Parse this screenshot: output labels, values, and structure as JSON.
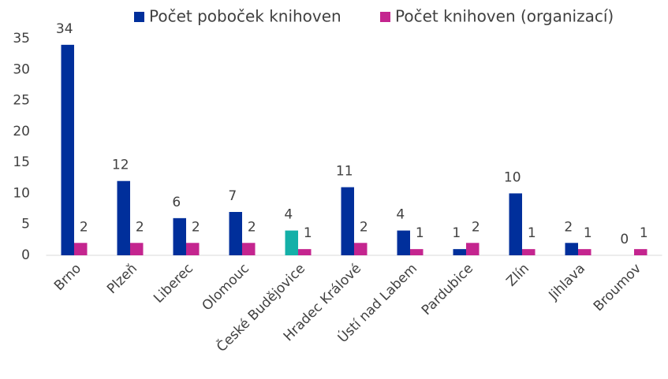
{
  "chart_data": {
    "type": "bar",
    "categories": [
      "Brno",
      "Plzeň",
      "Liberec",
      "Olomouc",
      "České Budějovice",
      "Hradec Králové",
      "Ústí nad Labem",
      "Pardubice",
      "Zlín",
      "Jihlava",
      "Broumov"
    ],
    "series": [
      {
        "name": "Počet poboček knihoven",
        "color": "#002f9b",
        "colors": [
          "#002f9b",
          "#002f9b",
          "#002f9b",
          "#002f9b",
          "#14b0a8",
          "#002f9b",
          "#002f9b",
          "#002f9b",
          "#002f9b",
          "#002f9b",
          "#002f9b"
        ],
        "values": [
          34,
          12,
          6,
          7,
          4,
          11,
          4,
          1,
          10,
          2,
          0
        ]
      },
      {
        "name": "Počet knihoven (organizací)",
        "color": "#c4258f",
        "values": [
          2,
          2,
          2,
          2,
          1,
          2,
          1,
          2,
          1,
          1,
          1
        ]
      }
    ],
    "ylim": [
      0,
      35
    ],
    "yticks": [
      0,
      5,
      10,
      15,
      20,
      25,
      30,
      35
    ],
    "grid": false,
    "legend": "top"
  }
}
